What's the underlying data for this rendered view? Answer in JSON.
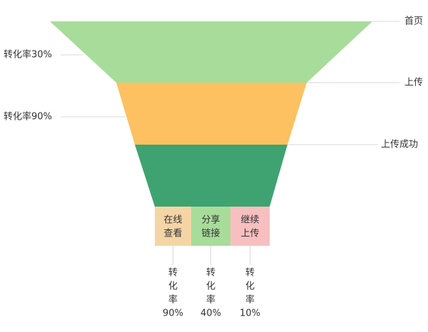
{
  "stages": [
    {
      "label": "首页"
    },
    {
      "label": "上传"
    },
    {
      "label": "上传成功"
    }
  ],
  "conversions": [
    "转化率30%",
    "转化率90%"
  ],
  "branches": [
    {
      "label": [
        "在线",
        "查看"
      ],
      "rate": [
        "转",
        "化",
        "率",
        "90%"
      ]
    },
    {
      "label": [
        "分享",
        "链接"
      ],
      "rate": [
        "转",
        "化",
        "率",
        "40%"
      ]
    },
    {
      "label": [
        "继续",
        "上传"
      ],
      "rate": [
        "转",
        "化",
        "率",
        "10%"
      ]
    }
  ]
}
